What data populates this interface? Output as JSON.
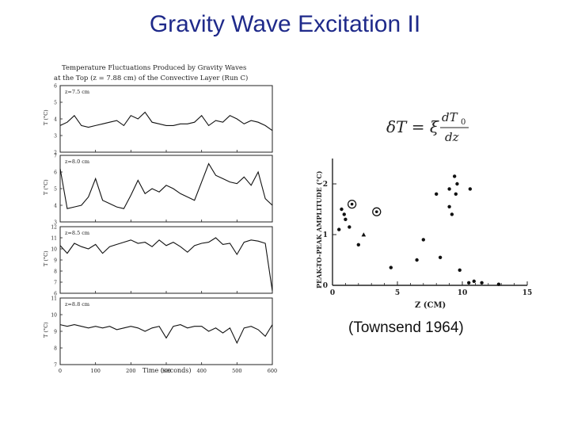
{
  "slide": {
    "title": "Gravity Wave Excitation II",
    "citation": "(Townsend 1964)"
  },
  "figure_left": {
    "title_line1": "Temperature Fluctuations Produced by Gravity Waves",
    "title_line2": "at the Top (z = 7.88 cm) of the Convective Layer (Run C)",
    "xlabel": "Time (seconds)",
    "ylabel": "T (°C)",
    "xticks": [
      "0",
      "100",
      "200",
      "300",
      "400",
      "500",
      "600"
    ]
  },
  "formula": {
    "lhs": "δT = ξ",
    "num": "dT",
    "num_sub": "0",
    "den": "dz"
  },
  "chart_data": [
    {
      "type": "line",
      "panels": [
        {
          "label": "z=7.5 cm",
          "ylim": [
            2,
            6
          ],
          "yticks": [
            "2",
            "3",
            "4",
            "5",
            "6"
          ],
          "x": [
            0,
            20,
            40,
            60,
            80,
            100,
            120,
            140,
            160,
            180,
            200,
            220,
            240,
            260,
            280,
            300,
            320,
            340,
            360,
            380,
            400,
            420,
            440,
            460,
            480,
            500,
            520,
            540,
            560,
            580,
            600
          ],
          "y": [
            3.6,
            3.8,
            4.2,
            3.6,
            3.5,
            3.6,
            3.7,
            3.8,
            3.9,
            3.6,
            4.2,
            4.0,
            4.4,
            3.8,
            3.7,
            3.6,
            3.6,
            3.7,
            3.7,
            3.8,
            4.2,
            3.6,
            3.9,
            3.8,
            4.2,
            4.0,
            3.7,
            3.9,
            3.8,
            3.6,
            3.3
          ]
        },
        {
          "label": "z=8.0 cm",
          "ylim": [
            3,
            7
          ],
          "yticks": [
            "3",
            "4",
            "5",
            "6",
            "7"
          ],
          "x": [
            0,
            20,
            40,
            60,
            80,
            100,
            120,
            140,
            160,
            180,
            200,
            220,
            240,
            260,
            280,
            300,
            320,
            340,
            360,
            380,
            400,
            420,
            440,
            460,
            480,
            500,
            520,
            540,
            560,
            580,
            600
          ],
          "y": [
            6.2,
            3.8,
            3.9,
            4.0,
            4.5,
            5.6,
            4.3,
            4.1,
            3.9,
            3.8,
            4.6,
            5.5,
            4.7,
            5.0,
            4.8,
            5.2,
            5.0,
            4.7,
            4.5,
            4.3,
            5.4,
            6.5,
            5.8,
            5.6,
            5.4,
            5.3,
            5.7,
            5.2,
            6.0,
            4.4,
            4.0
          ]
        },
        {
          "label": "z=8.5 cm",
          "ylim": [
            6,
            12
          ],
          "yticks": [
            "6",
            "7",
            "8",
            "9",
            "10",
            "11",
            "12"
          ],
          "x": [
            0,
            20,
            40,
            60,
            80,
            100,
            120,
            140,
            160,
            180,
            200,
            220,
            240,
            260,
            280,
            300,
            320,
            340,
            360,
            380,
            400,
            420,
            440,
            460,
            480,
            500,
            520,
            540,
            560,
            580,
            600
          ],
          "y": [
            10.3,
            9.6,
            10.5,
            10.2,
            10.0,
            10.4,
            9.6,
            10.2,
            10.4,
            10.6,
            10.8,
            10.5,
            10.6,
            10.2,
            10.8,
            10.3,
            10.6,
            10.2,
            9.7,
            10.3,
            10.5,
            10.6,
            11.0,
            10.4,
            10.5,
            9.5,
            10.6,
            10.8,
            10.7,
            10.5,
            6.2
          ]
        },
        {
          "label": "z=8.8 cm",
          "ylim": [
            7,
            11
          ],
          "yticks": [
            "7",
            "8",
            "9",
            "10",
            "11"
          ],
          "x": [
            0,
            20,
            40,
            60,
            80,
            100,
            120,
            140,
            160,
            180,
            200,
            220,
            240,
            260,
            280,
            300,
            320,
            340,
            360,
            380,
            400,
            420,
            440,
            460,
            480,
            500,
            520,
            540,
            560,
            580,
            600
          ],
          "y": [
            9.4,
            9.3,
            9.4,
            9.3,
            9.2,
            9.3,
            9.2,
            9.3,
            9.1,
            9.2,
            9.3,
            9.2,
            9.0,
            9.2,
            9.3,
            8.6,
            9.3,
            9.4,
            9.2,
            9.3,
            9.3,
            9.0,
            9.2,
            8.9,
            9.2,
            8.3,
            9.2,
            9.3,
            9.1,
            8.7,
            9.4
          ]
        }
      ]
    },
    {
      "type": "scatter",
      "xlabel": "Z (CM)",
      "ylabel": "PEAK-TO-PEAK AMPLITUDE (°C)",
      "xlim": [
        0,
        15
      ],
      "ylim": [
        0,
        2.5
      ],
      "xticks": [
        "0",
        "5",
        "10",
        "15"
      ],
      "yticks": [
        "0",
        "1",
        "2"
      ],
      "points": [
        {
          "x": 0.5,
          "y": 1.1
        },
        {
          "x": 0.7,
          "y": 1.5
        },
        {
          "x": 0.9,
          "y": 1.4
        },
        {
          "x": 1.0,
          "y": 1.3
        },
        {
          "x": 1.3,
          "y": 1.15
        },
        {
          "x": 2.0,
          "y": 0.8
        },
        {
          "x": 4.5,
          "y": 0.35
        },
        {
          "x": 6.5,
          "y": 0.5
        },
        {
          "x": 7.0,
          "y": 0.9
        },
        {
          "x": 8.0,
          "y": 1.8
        },
        {
          "x": 8.3,
          "y": 0.55
        },
        {
          "x": 9.0,
          "y": 1.9
        },
        {
          "x": 9.0,
          "y": 1.55
        },
        {
          "x": 9.2,
          "y": 1.4
        },
        {
          "x": 9.4,
          "y": 2.15
        },
        {
          "x": 9.5,
          "y": 1.8
        },
        {
          "x": 9.6,
          "y": 2.0
        },
        {
          "x": 9.8,
          "y": 0.3
        },
        {
          "x": 10.5,
          "y": 0.05
        },
        {
          "x": 10.6,
          "y": 1.9
        },
        {
          "x": 10.9,
          "y": 0.08
        },
        {
          "x": 11.5,
          "y": 0.05
        },
        {
          "x": 12.8,
          "y": 0.02
        }
      ],
      "open_circle_points": [
        {
          "x": 1.5,
          "y": 1.6
        },
        {
          "x": 3.4,
          "y": 1.45
        }
      ],
      "triangle_points": [
        {
          "x": 2.4,
          "y": 1.0
        }
      ]
    }
  ]
}
